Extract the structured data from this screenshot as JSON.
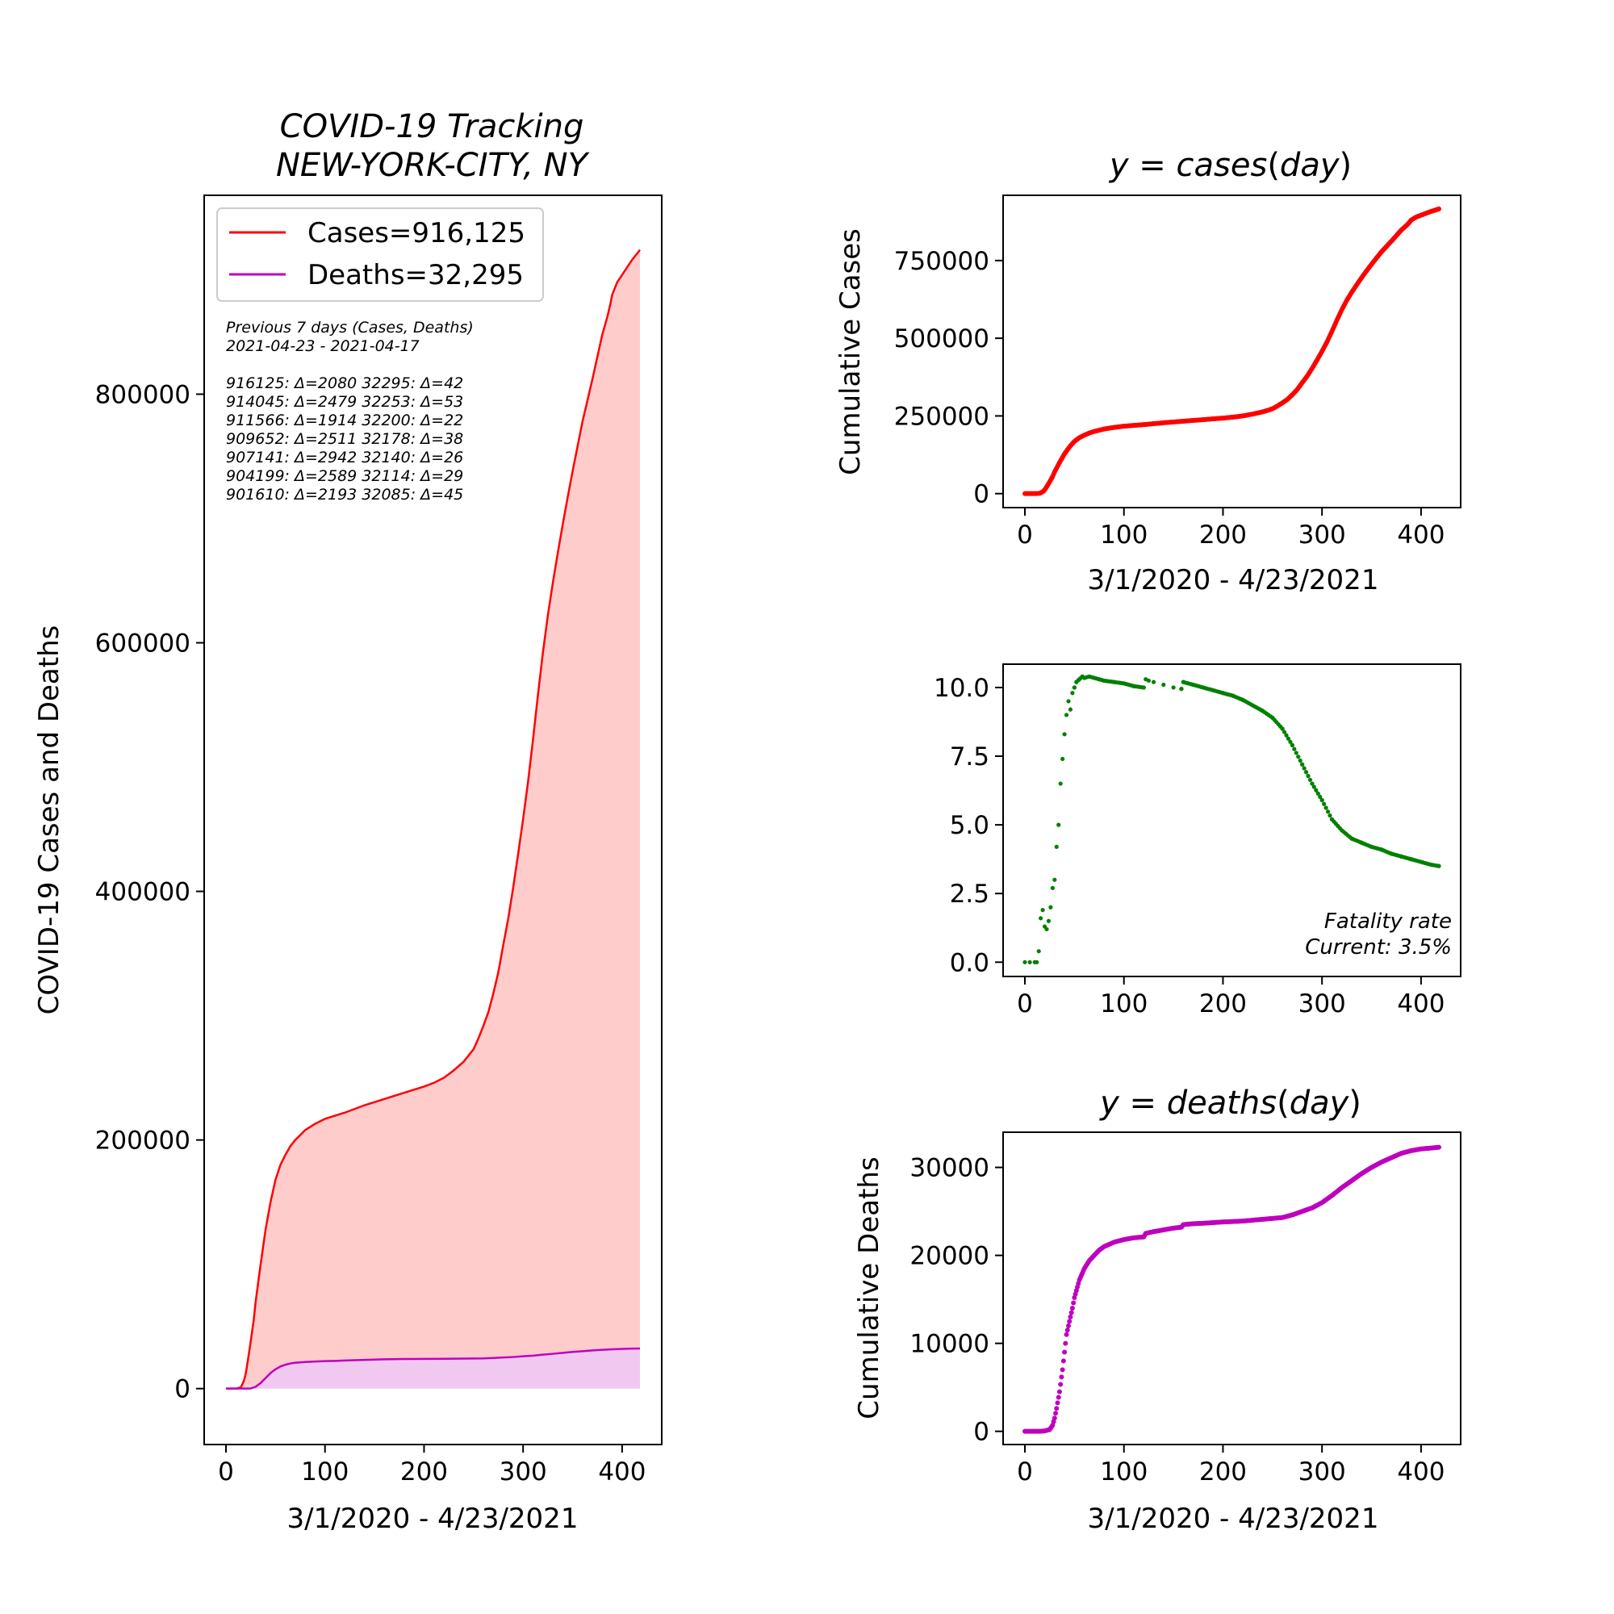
{
  "figure": {
    "background": "#ffffff"
  },
  "chart_data": [
    {
      "id": "main",
      "type": "area",
      "title": "COVID-19 Tracking\nNEW-YORK-CITY, NY",
      "title_lines": [
        "COVID-19 Tracking",
        "NEW-YORK-CITY, NY"
      ],
      "xlabel": "3/1/2020 - 4/23/2021",
      "ylabel": "COVID-19 Cases and Deaths",
      "xlim": [
        -22,
        440
      ],
      "ylim": [
        -45000,
        960000
      ],
      "xticks": [
        0,
        100,
        200,
        300,
        400
      ],
      "yticks": [
        0,
        200000,
        400000,
        600000,
        800000
      ],
      "grid": false,
      "legend_position": "top-left",
      "legend": [
        {
          "label": "Cases=916,125",
          "color": "#ff0000"
        },
        {
          "label": "Deaths=32,295",
          "color": "#bf00bf"
        }
      ],
      "annotation_lines": [
        "Previous 7 days (Cases, Deaths)",
        "2021-04-23 - 2021-04-17",
        "",
        "916125: Δ=2080 32295: Δ=42",
        "914045: Δ=2479 32253: Δ=53",
        "911566: Δ=1914 32200: Δ=22",
        "909652: Δ=2511 32178: Δ=38",
        "907141: Δ=2942 32140: Δ=26",
        "904199: Δ=2589 32114: Δ=29",
        "901610: Δ=2193 32085: Δ=45"
      ],
      "series": [
        {
          "name": "Cases=916,125",
          "color": "#ff0000",
          "fill": "#ffcccc",
          "x": [
            0,
            10,
            15,
            18,
            20,
            22,
            25,
            28,
            30,
            35,
            40,
            45,
            50,
            55,
            60,
            65,
            70,
            75,
            80,
            90,
            100,
            120,
            140,
            160,
            180,
            200,
            210,
            220,
            230,
            240,
            245,
            250,
            255,
            260,
            265,
            270,
            275,
            280,
            285,
            290,
            295,
            300,
            305,
            310,
            315,
            320,
            325,
            330,
            335,
            340,
            345,
            350,
            355,
            360,
            365,
            370,
            375,
            380,
            385,
            388,
            390,
            395,
            400,
            405,
            410,
            415,
            418
          ],
          "y": [
            0,
            0,
            1000,
            6000,
            12000,
            22000,
            38000,
            55000,
            70000,
            100000,
            128000,
            150000,
            168000,
            180000,
            188000,
            195000,
            200000,
            204000,
            208000,
            213000,
            217000,
            222000,
            228000,
            233000,
            238000,
            243000,
            246000,
            250000,
            256000,
            263000,
            268000,
            273000,
            282000,
            292000,
            303000,
            318000,
            335000,
            357000,
            378000,
            403000,
            430000,
            458000,
            488000,
            522000,
            558000,
            592000,
            622000,
            648000,
            672000,
            695000,
            717000,
            738000,
            758000,
            778000,
            795000,
            812000,
            830000,
            848000,
            862000,
            872000,
            880000,
            890000,
            896000,
            902000,
            908000,
            913000,
            916125
          ]
        },
        {
          "name": "Deaths=32,295",
          "color": "#bf00bf",
          "fill": "#f0c8f0",
          "x": [
            0,
            20,
            25,
            30,
            35,
            40,
            45,
            50,
            55,
            60,
            65,
            70,
            80,
            90,
            100,
            110,
            120,
            140,
            160,
            180,
            200,
            220,
            240,
            260,
            270,
            280,
            290,
            300,
            310,
            320,
            330,
            340,
            350,
            360,
            370,
            380,
            390,
            400,
            410,
            418
          ],
          "y": [
            0,
            5,
            100,
            1500,
            4500,
            8500,
            12500,
            15500,
            17800,
            19200,
            20200,
            20800,
            21400,
            21800,
            22100,
            22300,
            22600,
            23100,
            23600,
            23800,
            23900,
            24000,
            24150,
            24300,
            24600,
            25000,
            25400,
            26000,
            26500,
            27300,
            28000,
            28800,
            29500,
            30100,
            30700,
            31200,
            31600,
            31900,
            32150,
            32295
          ]
        }
      ]
    },
    {
      "id": "cases",
      "type": "scatter",
      "title": "y = cases(day)",
      "title_parts": {
        "y": "y",
        "eq": " = ",
        "func": "cases",
        "open": "(",
        "arg": "day",
        "close": ")"
      },
      "xlabel": "3/1/2020 - 4/23/2021",
      "ylabel": "Cumulative Cases",
      "xlim": [
        -22,
        440
      ],
      "ylim": [
        -45000,
        960000
      ],
      "xticks": [
        0,
        100,
        200,
        300,
        400
      ],
      "yticks": [
        0,
        250000,
        500000,
        750000
      ],
      "grid": false,
      "series": [
        {
          "color": "#ff0000",
          "x": [
            0,
            10,
            15,
            18,
            20,
            22,
            25,
            28,
            30,
            35,
            40,
            45,
            50,
            55,
            60,
            65,
            70,
            75,
            80,
            90,
            100,
            120,
            140,
            160,
            180,
            200,
            210,
            220,
            230,
            240,
            245,
            250,
            255,
            260,
            265,
            270,
            275,
            280,
            285,
            290,
            295,
            300,
            305,
            310,
            315,
            320,
            325,
            330,
            335,
            340,
            345,
            350,
            355,
            360,
            365,
            370,
            375,
            380,
            385,
            388,
            390,
            395,
            400,
            405,
            410,
            415,
            418
          ],
          "y": [
            0,
            0,
            1000,
            6000,
            12000,
            22000,
            38000,
            55000,
            70000,
            100000,
            128000,
            150000,
            168000,
            180000,
            188000,
            195000,
            200000,
            204000,
            208000,
            213000,
            217000,
            222000,
            228000,
            233000,
            238000,
            243000,
            246000,
            250000,
            256000,
            263000,
            268000,
            273000,
            282000,
            292000,
            303000,
            318000,
            335000,
            357000,
            378000,
            403000,
            430000,
            458000,
            488000,
            522000,
            558000,
            592000,
            622000,
            648000,
            672000,
            695000,
            717000,
            738000,
            758000,
            778000,
            795000,
            812000,
            830000,
            848000,
            862000,
            872000,
            880000,
            890000,
            896000,
            902000,
            908000,
            913000,
            916125
          ]
        }
      ]
    },
    {
      "id": "fatality",
      "type": "scatter",
      "xlim": [
        -22,
        440
      ],
      "ylim": [
        -0.52,
        10.85
      ],
      "xticks": [
        0,
        100,
        200,
        300,
        400
      ],
      "yticks": [
        0.0,
        2.5,
        5.0,
        7.5,
        10.0
      ],
      "ytick_labels": [
        "0.0",
        "2.5",
        "5.0",
        "7.5",
        "10.0"
      ],
      "grid": false,
      "annotation_lines": [
        "Fatality rate",
        "Current: 3.5%"
      ],
      "series": [
        {
          "color": "#008000",
          "x": [
            0,
            5,
            10,
            12,
            14,
            16,
            18,
            20,
            22,
            24,
            26,
            28,
            30,
            32,
            34,
            36,
            38,
            40,
            42,
            44,
            46,
            48,
            50,
            52,
            55,
            58,
            60,
            65,
            70,
            75,
            80,
            90,
            100,
            110,
            120,
            122,
            125,
            130,
            140,
            150,
            158,
            160,
            170,
            180,
            190,
            200,
            210,
            220,
            230,
            240,
            250,
            260,
            270,
            280,
            290,
            300,
            310,
            320,
            330,
            340,
            350,
            360,
            370,
            380,
            390,
            400,
            410,
            418
          ],
          "y": [
            0.0,
            0.0,
            0.0,
            0.0,
            0.4,
            1.6,
            1.9,
            1.3,
            1.2,
            1.5,
            2.0,
            2.7,
            3.0,
            4.2,
            5.0,
            6.5,
            7.4,
            8.3,
            9.0,
            9.5,
            9.2,
            9.8,
            10.0,
            10.2,
            10.3,
            10.4,
            10.35,
            10.4,
            10.35,
            10.3,
            10.25,
            10.2,
            10.15,
            10.05,
            10.0,
            10.3,
            10.25,
            10.2,
            10.1,
            10.0,
            9.95,
            10.2,
            10.1,
            10.0,
            9.9,
            9.8,
            9.7,
            9.55,
            9.35,
            9.15,
            8.9,
            8.5,
            7.9,
            7.2,
            6.5,
            5.9,
            5.2,
            4.8,
            4.5,
            4.35,
            4.2,
            4.1,
            3.95,
            3.85,
            3.75,
            3.65,
            3.55,
            3.5
          ]
        }
      ]
    },
    {
      "id": "deaths",
      "type": "scatter",
      "title": "y = deaths(day)",
      "title_parts": {
        "y": "y",
        "eq": " = ",
        "func": "deaths",
        "open": "(",
        "arg": "day",
        "close": ")"
      },
      "xlabel": "3/1/2020 - 4/23/2021",
      "ylabel": "Cumulative Deaths",
      "xlim": [
        -22,
        440
      ],
      "ylim": [
        -1500,
        34000
      ],
      "xticks": [
        0,
        100,
        200,
        300,
        400
      ],
      "yticks": [
        0,
        10000,
        20000,
        30000
      ],
      "grid": false,
      "series": [
        {
          "color": "#bf00bf",
          "x": [
            0,
            5,
            10,
            15,
            20,
            25,
            28,
            30,
            32,
            35,
            38,
            40,
            42,
            45,
            48,
            50,
            55,
            60,
            65,
            70,
            75,
            80,
            90,
            100,
            110,
            120,
            122,
            130,
            140,
            150,
            158,
            160,
            170,
            180,
            200,
            220,
            240,
            260,
            270,
            280,
            290,
            300,
            310,
            320,
            330,
            340,
            350,
            360,
            370,
            380,
            390,
            400,
            410,
            418
          ],
          "y": [
            0,
            0,
            0,
            0,
            50,
            200,
            700,
            1500,
            2600,
            4500,
            7000,
            9000,
            11000,
            12500,
            14000,
            15200,
            17200,
            18500,
            19400,
            20000,
            20600,
            21000,
            21500,
            21800,
            22000,
            22100,
            22500,
            22700,
            22900,
            23100,
            23200,
            23500,
            23600,
            23650,
            23800,
            23900,
            24100,
            24300,
            24600,
            25000,
            25400,
            26000,
            26800,
            27700,
            28500,
            29300,
            30000,
            30600,
            31100,
            31600,
            31900,
            32100,
            32200,
            32295
          ]
        }
      ]
    }
  ]
}
